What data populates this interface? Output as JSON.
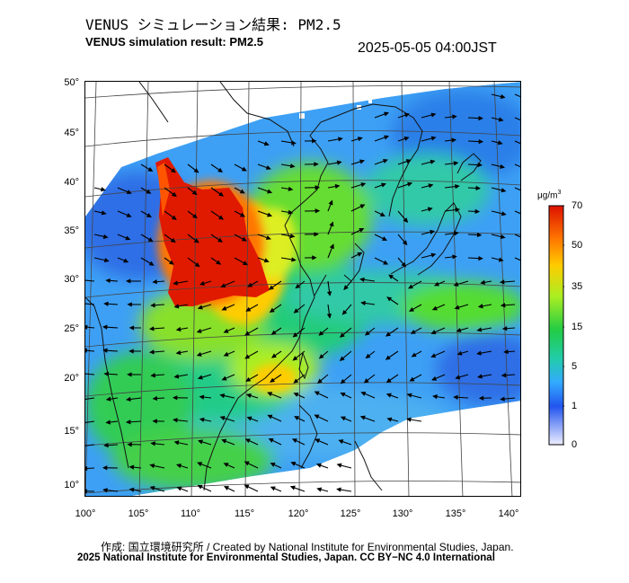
{
  "header": {
    "title_jp": "VENUS シミュレーション結果: PM2.5",
    "title_en": "VENUS simulation result: PM2.5",
    "timestamp": "2025-05-05 04:00JST"
  },
  "map": {
    "lat_ticks": [
      "50°",
      "45°",
      "40°",
      "35°",
      "30°",
      "25°",
      "20°",
      "15°",
      "10°"
    ],
    "lon_ticks": [
      "100°",
      "105°",
      "110°",
      "115°",
      "120°",
      "125°",
      "130°",
      "135°",
      "140°"
    ],
    "lat_range": [
      9,
      50
    ],
    "lon_range": [
      100,
      141
    ],
    "layers": [
      "PM2.5 concentration field",
      "wind vectors",
      "coastlines",
      "graticule"
    ]
  },
  "colorbar": {
    "unit_main": "μg/m",
    "unit_sup": "3",
    "labels": [
      "70",
      "50",
      "35",
      "15",
      "5",
      "1",
      "0"
    ],
    "colors": [
      "#dd1100",
      "#ff7700",
      "#ffcc00",
      "#aaee22",
      "#22cc44",
      "#22ccaa",
      "#33aaff",
      "#2255ee",
      "#eeeeff"
    ]
  },
  "footer": {
    "credit_jp_en": "作成: 国立環境研究所 / Created by National Institute for Environmental Studies, Japan.",
    "copyright": "2025 National Institute for Environmental Studies, Japan. CC BY−NC 4.0 International"
  }
}
